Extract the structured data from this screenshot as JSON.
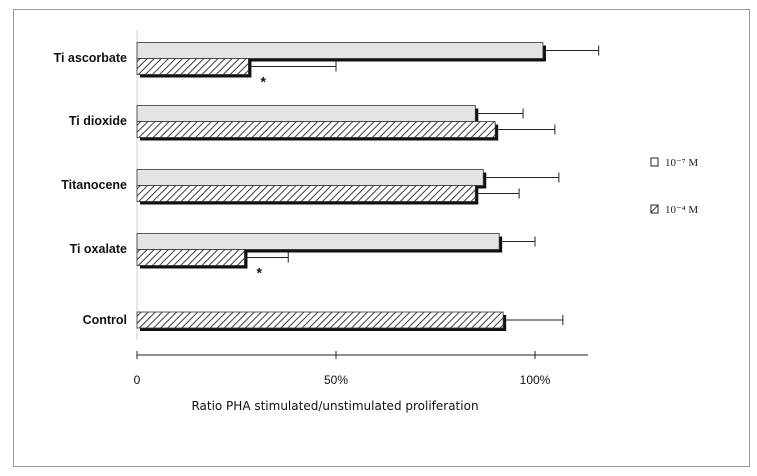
{
  "chart_data": {
    "type": "bar",
    "orientation": "horizontal",
    "title": "",
    "xlabel": "Ratio PHA stimulated/unstimulated proliferation",
    "ylabel": "",
    "xlim": [
      0,
      1.13
    ],
    "xticks": [
      {
        "value": 0,
        "label": "0"
      },
      {
        "value": 0.5,
        "label": "50%"
      },
      {
        "value": 1.0,
        "label": "100%"
      }
    ],
    "grid": false,
    "legend_position": "right",
    "categories": [
      {
        "name": "Ti ascorbate",
        "bars": [
          {
            "series": "10⁻⁷ M",
            "value": 1.02,
            "error": 0.14
          },
          {
            "series": "10⁻⁴ M",
            "value": 0.28,
            "error": 0.22,
            "annotation": "*"
          }
        ]
      },
      {
        "name": "Ti dioxide",
        "bars": [
          {
            "series": "10⁻⁷ M",
            "value": 0.85,
            "error": 0.12
          },
          {
            "series": "10⁻⁴ M",
            "value": 0.9,
            "error": 0.15
          }
        ]
      },
      {
        "name": "Titanocene",
        "bars": [
          {
            "series": "10⁻⁷ M",
            "value": 0.87,
            "error": 0.19
          },
          {
            "series": "10⁻⁴ M",
            "value": 0.85,
            "error": 0.11
          }
        ]
      },
      {
        "name": "Ti oxalate",
        "bars": [
          {
            "series": "10⁻⁷ M",
            "value": 0.91,
            "error": 0.09
          },
          {
            "series": "10⁻⁴ M",
            "value": 0.27,
            "error": 0.11,
            "annotation": "*"
          }
        ]
      },
      {
        "name": "Control",
        "bars": [
          {
            "series": "10⁻⁴ M",
            "value": 0.92,
            "error": 0.15
          }
        ]
      }
    ],
    "series": [
      {
        "name": "10⁻⁷ M",
        "fill": "plain",
        "color": "#e4e4e4"
      },
      {
        "name": "10⁻⁴ M",
        "fill": "hatched",
        "color": "#6a6a6a"
      }
    ]
  }
}
